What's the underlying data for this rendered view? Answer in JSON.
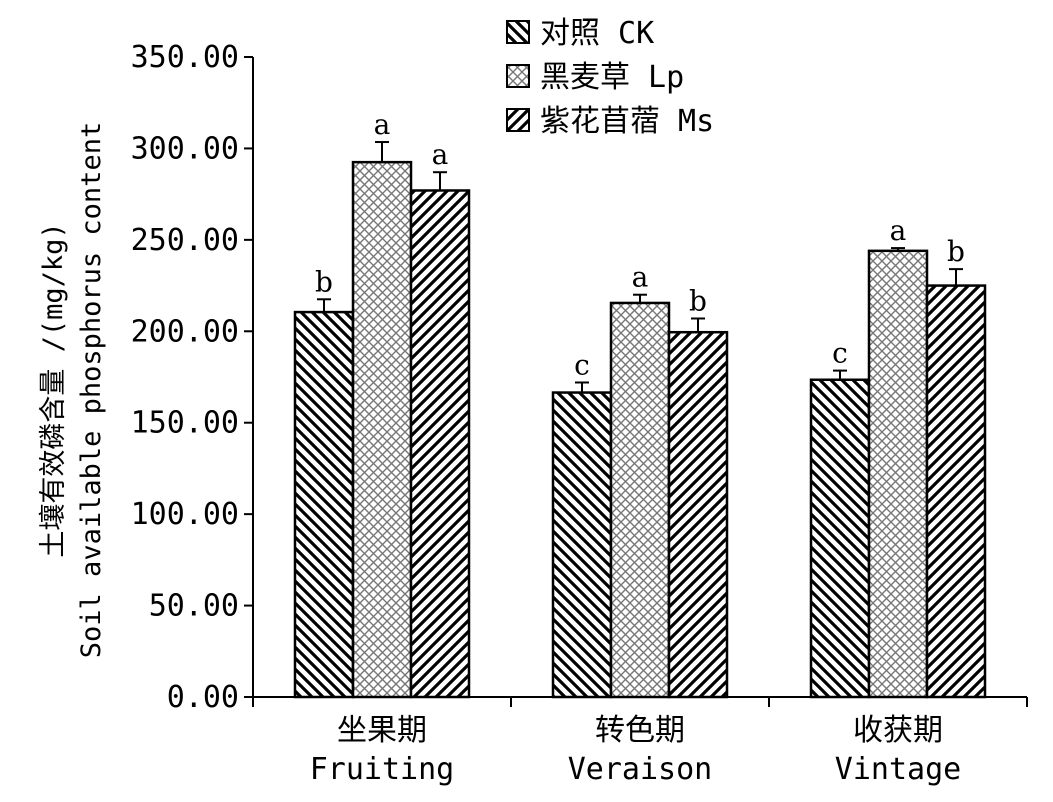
{
  "chart_data": {
    "type": "bar",
    "ylabel_cn": "土壤有效磷含量 /(mg/kg)",
    "ylabel_en": "Soil available phosphorus content",
    "ylim": [
      0,
      350
    ],
    "yticks": [
      "0.00",
      "50.00",
      "100.00",
      "150.00",
      "200.00",
      "250.00",
      "300.00",
      "350.00"
    ],
    "categories": [
      {
        "cn": "坐果期",
        "en": "Fruiting"
      },
      {
        "cn": "转色期",
        "en": "Veraison"
      },
      {
        "cn": "收获期",
        "en": "Vintage"
      }
    ],
    "series": [
      {
        "name": "对照 CK",
        "pattern": "diag-back",
        "values": [
          210.5,
          166.5,
          173.5
        ],
        "errors": [
          7,
          5.5,
          5
        ],
        "letters": [
          "b",
          "c",
          "c"
        ]
      },
      {
        "name": "黑麦草 Lp",
        "pattern": "crosshatch",
        "values": [
          292.5,
          215.5,
          244
        ],
        "errors": [
          11,
          4.5,
          1.5
        ],
        "letters": [
          "a",
          "a",
          "a"
        ]
      },
      {
        "name": "紫花苜蓿 Ms",
        "pattern": "diag-fwd",
        "values": [
          277,
          199.5,
          225
        ],
        "errors": [
          10,
          7.5,
          9
        ],
        "letters": [
          "a",
          "b",
          "b"
        ]
      }
    ],
    "legend_position": "top"
  }
}
